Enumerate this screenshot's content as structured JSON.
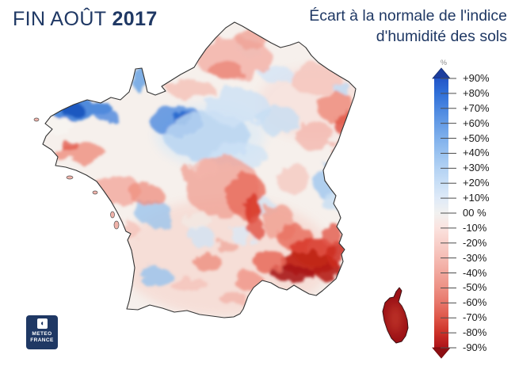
{
  "header": {
    "period_label": "FIN AOÛT",
    "year": "2017",
    "title_line1": "Écart à la normale de l'indice",
    "title_line2": "d'humidité des sols"
  },
  "colors": {
    "accent_navy": "#1f3864",
    "legend_arrow_top": "#1c3e9e",
    "legend_arrow_bottom": "#8e0e12",
    "legend_tick": "#4d4d4d"
  },
  "legend": {
    "unit": "%",
    "entries": [
      {
        "label": "+90%",
        "color": "#2255c8"
      },
      {
        "label": "+80%",
        "color": "#2f6fd8"
      },
      {
        "label": "+70%",
        "color": "#4a86e0"
      },
      {
        "label": "+60%",
        "color": "#659ce6"
      },
      {
        "label": "+50%",
        "color": "#7fb0ec"
      },
      {
        "label": "+40%",
        "color": "#99c2f0"
      },
      {
        "label": "+30%",
        "color": "#b3d2f4"
      },
      {
        "label": "+20%",
        "color": "#c9dff6"
      },
      {
        "label": "+10%",
        "color": "#dfeaf8"
      },
      {
        "label": "00 %",
        "color": "#f1f1f0"
      },
      {
        "label": "-10%",
        "color": "#fbe3df"
      },
      {
        "label": "-20%",
        "color": "#f8d0ca"
      },
      {
        "label": "-30%",
        "color": "#f5bcb4"
      },
      {
        "label": "-40%",
        "color": "#f1a79d"
      },
      {
        "label": "-50%",
        "color": "#ed9084"
      },
      {
        "label": "-60%",
        "color": "#e7766a"
      },
      {
        "label": "-70%",
        "color": "#de5548"
      },
      {
        "label": "-80%",
        "color": "#cc3128"
      },
      {
        "label": "-90%",
        "color": "#ad1318"
      }
    ]
  },
  "logo": {
    "line1": "METEO",
    "line2": "FRANCE"
  }
}
